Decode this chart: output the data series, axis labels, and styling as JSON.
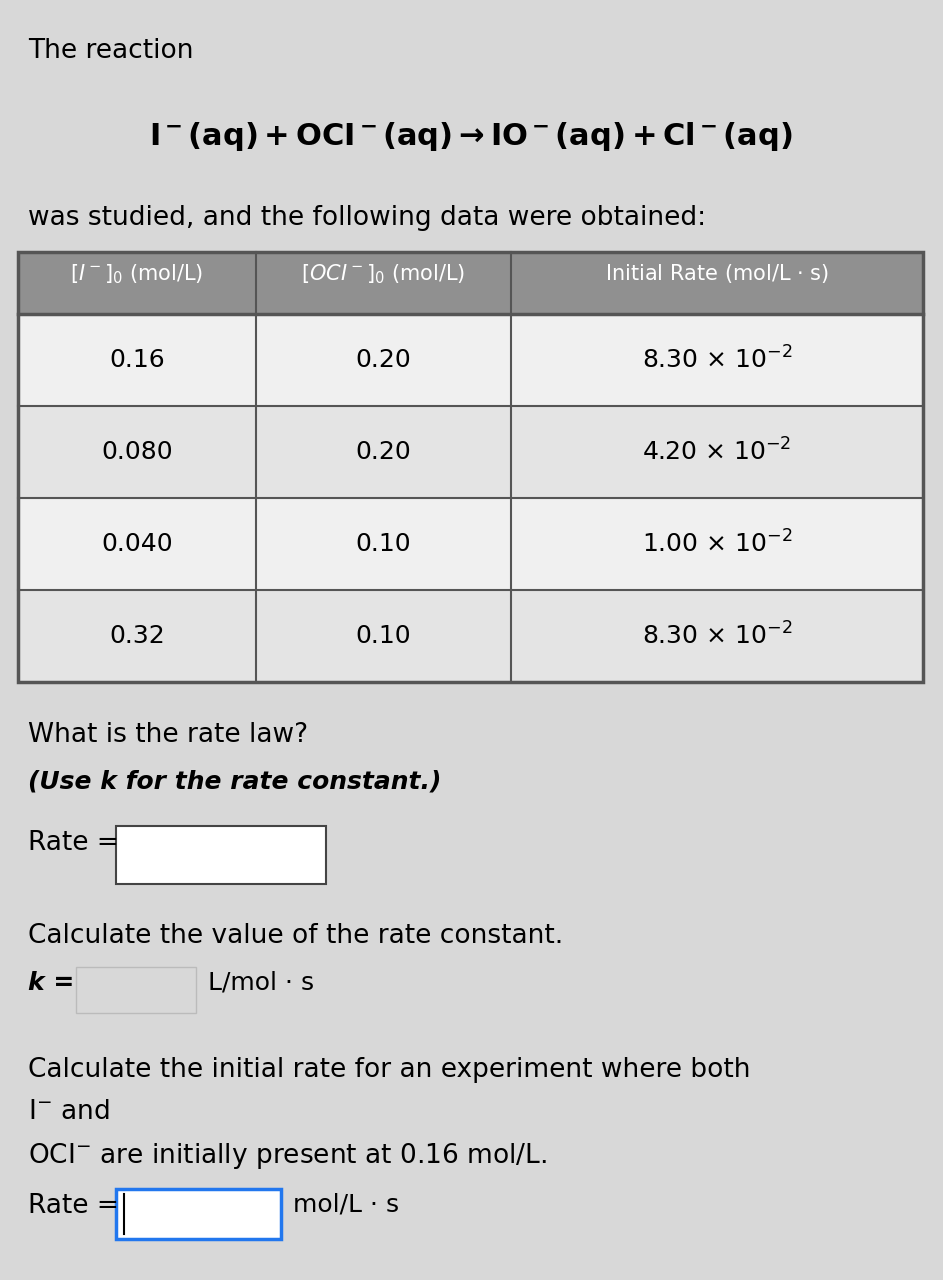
{
  "bg_color": "#d8d8d8",
  "content_bg": "#e8e8e8",
  "title_text": "The reaction",
  "subtitle": "was studied, and the following data were obtained:",
  "col1": [
    "0.16",
    "0.080",
    "0.040",
    "0.32"
  ],
  "col2": [
    "0.20",
    "0.20",
    "0.10",
    "0.10"
  ],
  "col3_base": [
    "8.30",
    "4.20",
    "1.00",
    "8.30"
  ],
  "header_bg": "#909090",
  "table_border_color": "#555555",
  "row_bg": [
    "#f0f0f0",
    "#e4e4e4",
    "#f0f0f0",
    "#e4e4e4"
  ],
  "q1": "What is the rate law?",
  "q1_italic": "(Use k for the rate constant.)",
  "q2": "Calculate the value of the rate constant.",
  "q3_line1": "Calculate the initial rate for an experiment where both",
  "q3_line2": "I⁻ and",
  "q3_line3": "OCI⁻ are initially present at 0.16 mol/L.",
  "k_unit": "L/mol · s",
  "rate2_unit": "mol/L · s"
}
